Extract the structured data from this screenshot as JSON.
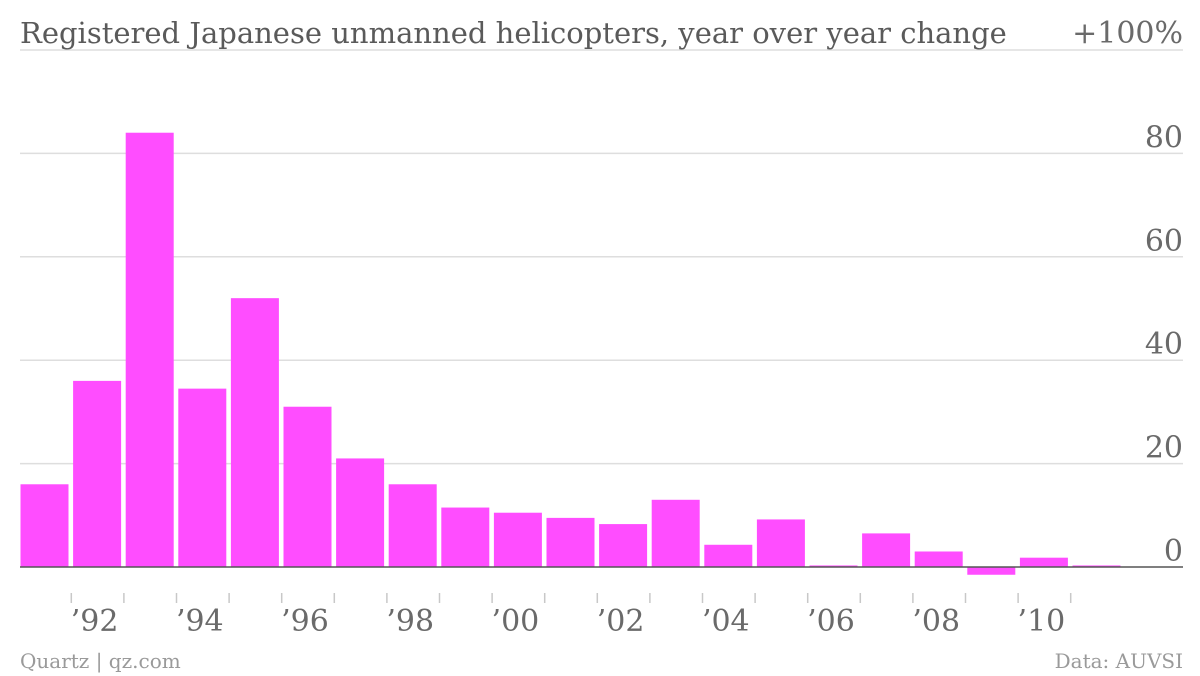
{
  "chart_data": {
    "type": "bar",
    "title": "Registered Japanese unmanned helicopters, year over year change",
    "y_top_label": "+100%",
    "x": [
      1991,
      1992,
      1993,
      1994,
      1995,
      1996,
      1997,
      1998,
      1999,
      2000,
      2001,
      2002,
      2003,
      2004,
      2005,
      2006,
      2007,
      2008,
      2009,
      2010,
      2011
    ],
    "values": [
      16,
      36,
      84,
      34.5,
      52,
      31,
      21,
      16,
      11.5,
      10.5,
      9.5,
      8.3,
      13,
      4.3,
      9.2,
      0.3,
      6.5,
      3,
      -1.5,
      1.8,
      0.3
    ],
    "x_tick_labels": [
      {
        "year": 1992,
        "label": "’92"
      },
      {
        "year": 1994,
        "label": "’94"
      },
      {
        "year": 1996,
        "label": "’96"
      },
      {
        "year": 1998,
        "label": "’98"
      },
      {
        "year": 2000,
        "label": "’00"
      },
      {
        "year": 2002,
        "label": "’02"
      },
      {
        "year": 2004,
        "label": "’04"
      },
      {
        "year": 2006,
        "label": "’06"
      },
      {
        "year": 2008,
        "label": "’08"
      },
      {
        "year": 2010,
        "label": "’10"
      }
    ],
    "y_ticks": [
      0,
      20,
      40,
      60,
      80,
      100
    ],
    "y_tick_labels": [
      "0",
      "20",
      "40",
      "60",
      "80"
    ],
    "ylim": [
      0,
      100
    ],
    "grid": true,
    "bar_color": "#ff4dff"
  },
  "footer": {
    "source_left": "Quartz | qz.com",
    "source_right": "Data: AUVSI"
  }
}
